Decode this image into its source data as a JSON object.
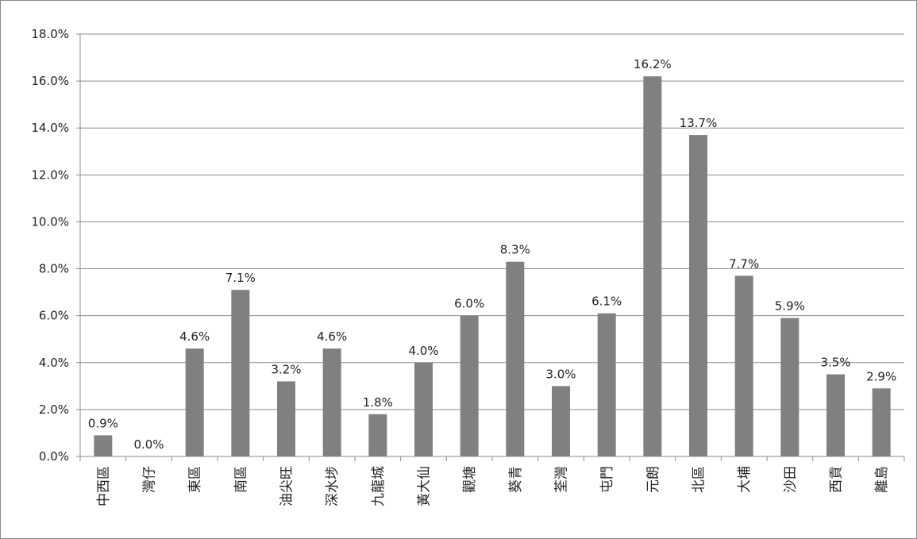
{
  "chart_data": {
    "type": "bar",
    "categories": [
      "中西區",
      "灣仔",
      "東區",
      "南區",
      "油尖旺",
      "深水埗",
      "九龍城",
      "黃大仙",
      "觀塘",
      "葵青",
      "荃灣",
      "屯門",
      "元朗",
      "北區",
      "大埔",
      "沙田",
      "西貢",
      "離島"
    ],
    "values": [
      0.9,
      0.0,
      4.6,
      7.1,
      3.2,
      4.6,
      1.8,
      4.0,
      6.0,
      8.3,
      3.0,
      6.1,
      16.2,
      13.7,
      7.7,
      5.9,
      3.5,
      2.9
    ],
    "data_labels": [
      "0.9%",
      "0.0%",
      "4.6%",
      "7.1%",
      "3.2%",
      "4.6%",
      "1.8%",
      "4.0%",
      "6.0%",
      "8.3%",
      "3.0%",
      "6.1%",
      "16.2%",
      "13.7%",
      "7.7%",
      "5.9%",
      "3.5%",
      "2.9%"
    ],
    "y_ticks": [
      "0.0%",
      "2.0%",
      "4.0%",
      "6.0%",
      "8.0%",
      "10.0%",
      "12.0%",
      "14.0%",
      "16.0%",
      "18.0%"
    ],
    "ylim": [
      0,
      18
    ],
    "y_step": 2,
    "title": "",
    "xlabel": "",
    "ylabel": "",
    "grid": true,
    "legend": "none",
    "bar_color": "#808080"
  }
}
